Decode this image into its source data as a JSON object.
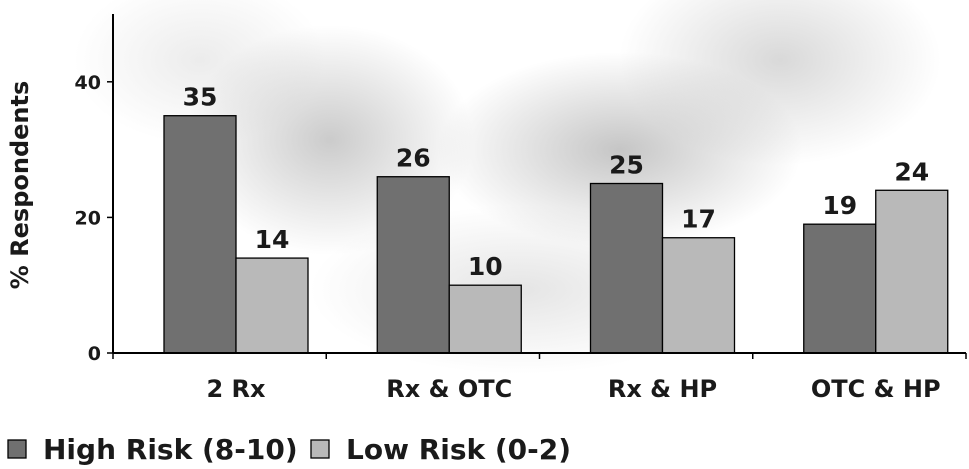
{
  "chart_data": {
    "type": "bar",
    "title": "",
    "xlabel": "",
    "ylabel": "% Respondents",
    "ylim": [
      0,
      50
    ],
    "yticks": [
      0,
      20,
      40
    ],
    "categories": [
      "2 Rx",
      "Rx & OTC",
      "Rx & HP",
      "OTC & HP"
    ],
    "series": [
      {
        "name": "High Risk (8-10)",
        "values": [
          35,
          26,
          25,
          19
        ],
        "color": "#707070"
      },
      {
        "name": "Low Risk (0-2)",
        "values": [
          14,
          10,
          17,
          24
        ],
        "color": "#b9b9b9"
      }
    ],
    "legend_position": "bottom-left",
    "grid": false
  }
}
